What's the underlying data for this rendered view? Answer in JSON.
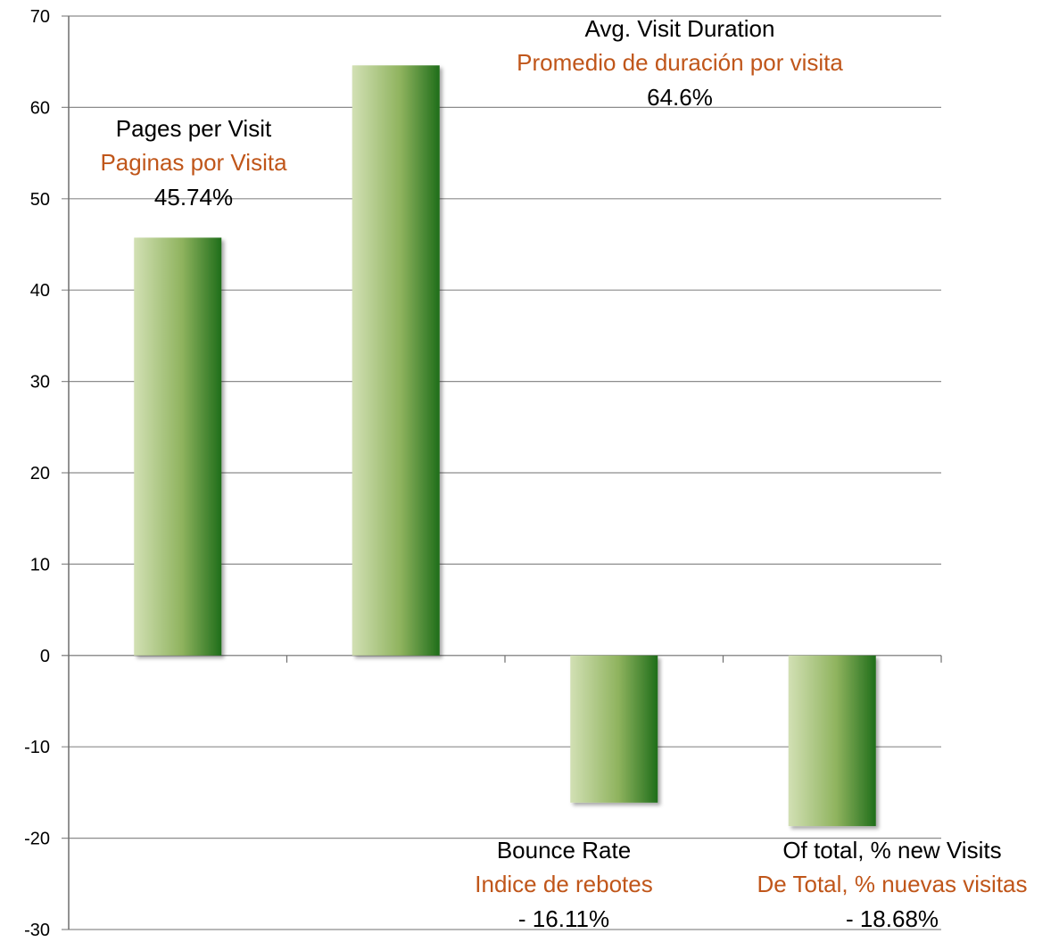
{
  "chart_data": {
    "type": "bar",
    "title": "",
    "xlabel": "",
    "ylabel": "",
    "ylim": [
      -30,
      70
    ],
    "yticks": [
      70,
      60,
      50,
      40,
      30,
      20,
      10,
      0,
      -10,
      -20,
      -30
    ],
    "grid": true,
    "values": [
      45.74,
      64.6,
      -16.11,
      -18.68
    ],
    "annotations": [
      {
        "line_en": "Pages per Visit",
        "line_es": "Paginas por Visita",
        "value_text": "45.74%"
      },
      {
        "line_en": "Avg. Visit Duration",
        "line_es": "Promedio de duración por visita",
        "value_text": "64.6%"
      },
      {
        "line_en": "Bounce Rate",
        "line_es": "Indice de rebotes",
        "value_text": "- 16.11%"
      },
      {
        "line_en": "Of total, % new Visits",
        "line_es": "De Total, % nuevas visitas",
        "value_text": "- 18.68%"
      }
    ]
  },
  "colors": {
    "bar_light": "#d2e0b4",
    "bar_mid": "#8fb35e",
    "bar_dark": "#1f6e1a",
    "spanish_text": "#c0561a",
    "english_text": "#000000",
    "grid": "#8c8c8c"
  }
}
